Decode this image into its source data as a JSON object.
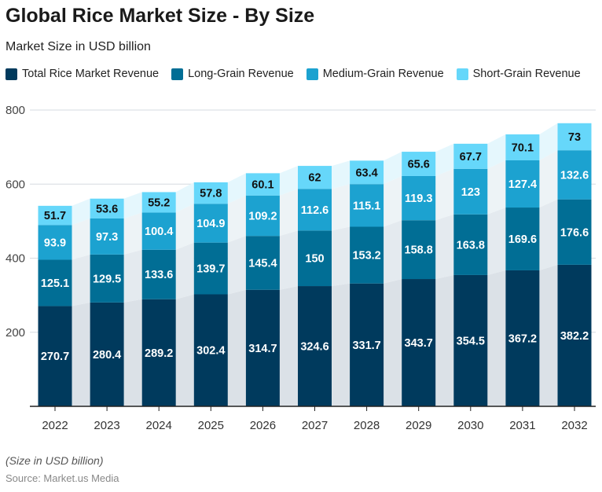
{
  "title": "Global Rice Market Size - By Size",
  "subtitle": "Market Size in USD billion",
  "note": "(Size in USD billion)",
  "source": "Source: Market.us Media",
  "chart_data": {
    "type": "stacked-bar",
    "title": "Global Rice Market Size - By Size",
    "ylim": [
      0,
      800
    ],
    "yticks": [
      200,
      400,
      600,
      800
    ],
    "grid": true,
    "legend_position": "top",
    "categories": [
      "2022",
      "2023",
      "2024",
      "2025",
      "2026",
      "2027",
      "2028",
      "2029",
      "2030",
      "2031",
      "2032"
    ],
    "series": [
      {
        "name": "Total Rice Market Revenue",
        "color": "#003a5d",
        "values": [
          270.7,
          280.4,
          289.2,
          302.4,
          314.7,
          324.6,
          331.7,
          343.7,
          354.5,
          367.2,
          382.2
        ]
      },
      {
        "name": "Long-Grain Revenue",
        "color": "#016e95",
        "values": [
          125.1,
          129.5,
          133.6,
          139.7,
          145.4,
          150,
          153.2,
          158.8,
          163.8,
          169.6,
          176.6
        ]
      },
      {
        "name": "Medium-Grain Revenue",
        "color": "#1ca2d0",
        "values": [
          93.9,
          97.3,
          100.4,
          104.9,
          109.2,
          112.6,
          115.1,
          119.3,
          123,
          127.4,
          132.6
        ]
      },
      {
        "name": "Short-Grain Revenue",
        "color": "#66d7fa",
        "values": [
          51.7,
          53.6,
          55.2,
          57.8,
          60.1,
          62,
          63.4,
          65.6,
          67.7,
          70.1,
          73
        ]
      }
    ]
  }
}
